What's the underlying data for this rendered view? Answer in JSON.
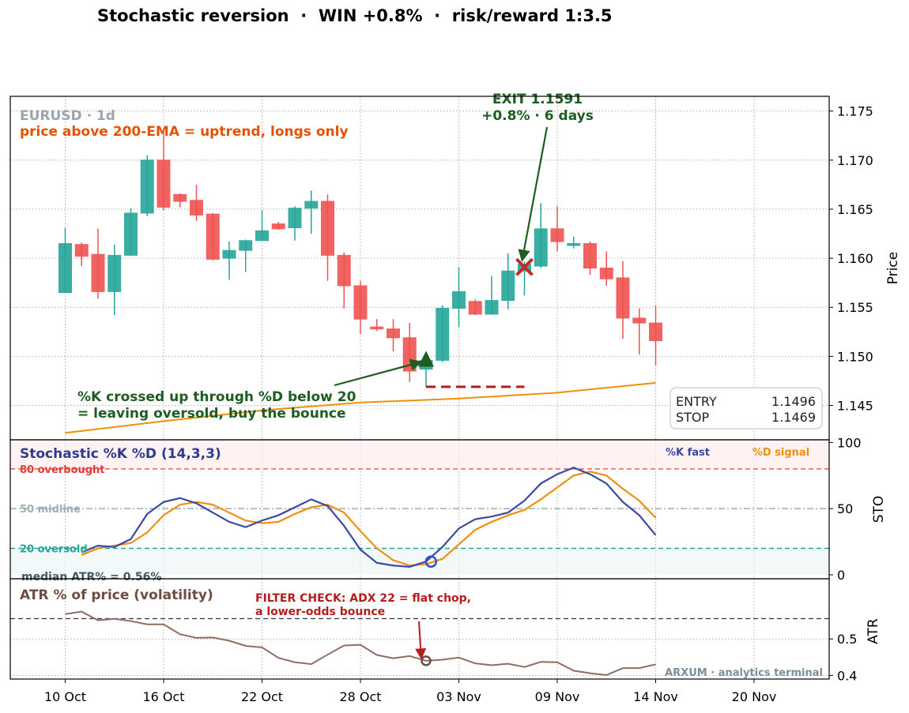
{
  "title": "Stochastic reversion  ·  WIN +0.8%  ·  risk/reward 1:3.5",
  "colors": {
    "bull": "#26a69a",
    "bear": "#ef5350",
    "ema": "#f0900a",
    "k": "#3a4aa0",
    "d": "#f0900a",
    "atr": "#8d6e63",
    "green": "#1b5e20",
    "red": "#b71c1c",
    "orange": "#e65100",
    "overbought": "#e53935",
    "oversold": "#26a69a",
    "midline": "#9eaeb5"
  },
  "chart_data": [
    {
      "type": "candlestick",
      "panel": "price",
      "ylabel": "Price",
      "ylim": [
        1.1415,
        1.1765
      ],
      "yticks": [
        "1.145",
        "1.150",
        "1.155",
        "1.160",
        "1.165",
        "1.170",
        "1.175"
      ],
      "xtick_labels": [
        "10 Oct",
        "16 Oct",
        "22 Oct",
        "28 Oct",
        "03 Nov",
        "09 Nov",
        "14 Nov",
        "20 Nov"
      ],
      "xtick_index": [
        0,
        6,
        12,
        18,
        24,
        30,
        36,
        42
      ],
      "grid": true,
      "label_symbol": "EURUSD · 1d",
      "label_trend": "price above 200-EMA = uptrend, longs only",
      "candles": [
        {
          "o": 1.1565,
          "h": 1.1631,
          "l": 1.1565,
          "c": 1.1615
        },
        {
          "o": 1.1614,
          "h": 1.1616,
          "l": 1.1592,
          "c": 1.1602
        },
        {
          "o": 1.1604,
          "h": 1.163,
          "l": 1.1559,
          "c": 1.1566
        },
        {
          "o": 1.1566,
          "h": 1.1614,
          "l": 1.1542,
          "c": 1.1603
        },
        {
          "o": 1.1603,
          "h": 1.1651,
          "l": 1.1603,
          "c": 1.1646
        },
        {
          "o": 1.1646,
          "h": 1.1705,
          "l": 1.1643,
          "c": 1.17
        },
        {
          "o": 1.17,
          "h": 1.1731,
          "l": 1.1649,
          "c": 1.1652
        },
        {
          "o": 1.1665,
          "h": 1.1666,
          "l": 1.1652,
          "c": 1.1658
        },
        {
          "o": 1.1659,
          "h": 1.1675,
          "l": 1.1638,
          "c": 1.1644
        },
        {
          "o": 1.1645,
          "h": 1.1646,
          "l": 1.1598,
          "c": 1.1599
        },
        {
          "o": 1.16,
          "h": 1.1617,
          "l": 1.1578,
          "c": 1.1608
        },
        {
          "o": 1.1608,
          "h": 1.1619,
          "l": 1.1586,
          "c": 1.1618
        },
        {
          "o": 1.1618,
          "h": 1.1649,
          "l": 1.1618,
          "c": 1.1628
        },
        {
          "o": 1.1635,
          "h": 1.1637,
          "l": 1.1629,
          "c": 1.163
        },
        {
          "o": 1.1631,
          "h": 1.1653,
          "l": 1.1618,
          "c": 1.1651
        },
        {
          "o": 1.1651,
          "h": 1.1669,
          "l": 1.1625,
          "c": 1.1658
        },
        {
          "o": 1.1658,
          "h": 1.1665,
          "l": 1.1577,
          "c": 1.1603
        },
        {
          "o": 1.1603,
          "h": 1.1606,
          "l": 1.1549,
          "c": 1.1572
        },
        {
          "o": 1.1572,
          "h": 1.1577,
          "l": 1.1523,
          "c": 1.1538
        },
        {
          "o": 1.153,
          "h": 1.1538,
          "l": 1.1526,
          "c": 1.1528
        },
        {
          "o": 1.1528,
          "h": 1.1538,
          "l": 1.1505,
          "c": 1.1519
        },
        {
          "o": 1.1519,
          "h": 1.1534,
          "l": 1.1474,
          "c": 1.1485
        },
        {
          "o": 1.1487,
          "h": 1.1503,
          "l": 1.1469,
          "c": 1.1496
        },
        {
          "o": 1.1496,
          "h": 1.1552,
          "l": 1.1494,
          "c": 1.1549
        },
        {
          "o": 1.1549,
          "h": 1.1591,
          "l": 1.153,
          "c": 1.1566
        },
        {
          "o": 1.1556,
          "h": 1.1558,
          "l": 1.1542,
          "c": 1.1543
        },
        {
          "o": 1.1543,
          "h": 1.1582,
          "l": 1.1543,
          "c": 1.1557
        },
        {
          "o": 1.1557,
          "h": 1.1605,
          "l": 1.1548,
          "c": 1.1587
        },
        {
          "o": 1.1587,
          "h": 1.1597,
          "l": 1.1562,
          "c": 1.1594
        },
        {
          "o": 1.1592,
          "h": 1.1656,
          "l": 1.159,
          "c": 1.163
        },
        {
          "o": 1.163,
          "h": 1.1653,
          "l": 1.1607,
          "c": 1.1617
        },
        {
          "o": 1.1613,
          "h": 1.1622,
          "l": 1.161,
          "c": 1.1615
        },
        {
          "o": 1.1615,
          "h": 1.1617,
          "l": 1.1583,
          "c": 1.159
        },
        {
          "o": 1.159,
          "h": 1.1607,
          "l": 1.1572,
          "c": 1.1579
        },
        {
          "o": 1.158,
          "h": 1.1597,
          "l": 1.1518,
          "c": 1.1539
        },
        {
          "o": 1.1539,
          "h": 1.1549,
          "l": 1.1502,
          "c": 1.1534
        },
        {
          "o": 1.1534,
          "h": 1.1552,
          "l": 1.1491,
          "c": 1.1516
        }
      ],
      "candle_days": [
        0,
        1,
        2,
        3,
        4,
        5,
        6,
        7,
        8,
        9,
        10,
        11,
        12,
        13,
        14,
        15,
        16,
        17,
        18,
        19,
        20,
        21,
        22,
        23,
        24,
        25,
        26,
        27,
        28,
        29,
        30,
        31,
        32,
        33,
        34,
        35,
        36
      ],
      "ema200": {
        "name": "200-EMA",
        "x": [
          0,
          6,
          12,
          18,
          24,
          30,
          36
        ],
        "y": [
          1.1422,
          1.1434,
          1.1445,
          1.1453,
          1.1457,
          1.1463,
          1.1473
        ]
      },
      "entry": {
        "index": 22,
        "price": 1.1496
      },
      "exit": {
        "index": 28,
        "price": 1.1591
      },
      "stop": {
        "price": 1.1469,
        "from_index": 22,
        "to_index": 28
      },
      "annotations": {
        "exit_line1": "EXIT 1.1591",
        "exit_line2": "+0.8%  ·  6 days",
        "entry_line1": "%K crossed up through %D below 20",
        "entry_line2": "= leaving oversold, buy the bounce"
      },
      "trade_box": {
        "entry_label": "ENTRY",
        "entry_value": "1.1496",
        "stop_label": "STOP",
        "stop_value": "1.1469"
      }
    },
    {
      "type": "line",
      "panel": "stochastic",
      "title": "Stochastic %K %D (14,3,3)",
      "ylabel": "STO",
      "ylim": [
        -3,
        102
      ],
      "yticks": [
        "0",
        "50",
        "100"
      ],
      "levels": {
        "overbought": {
          "value": 80,
          "label": "80  overbought"
        },
        "midline": {
          "value": 50,
          "label": "50  midline"
        },
        "oversold": {
          "value": 20,
          "label": "20  oversold"
        }
      },
      "legend": {
        "k_label": "%K fast",
        "d_label": "%D signal",
        "placement": "top-right"
      },
      "series": [
        {
          "name": "%K fast",
          "values": [
            17,
            22,
            21,
            27,
            46,
            55,
            58,
            54,
            47,
            40,
            36,
            41,
            45,
            51,
            57,
            52,
            37,
            19,
            9,
            7,
            6,
            10,
            21,
            35,
            42,
            44,
            47,
            56,
            69,
            76,
            81,
            76,
            69,
            55,
            45,
            30
          ]
        },
        {
          "name": "%D signal",
          "values": [
            15,
            20,
            22,
            24,
            32,
            45,
            53,
            55,
            53,
            47,
            41,
            39,
            40,
            46,
            51,
            53,
            47,
            33,
            20,
            11,
            7,
            8,
            12,
            23,
            34,
            40,
            45,
            49,
            57,
            66,
            75,
            78,
            75,
            65,
            56,
            43
          ]
        }
      ],
      "x_index": [
        0,
        1,
        2,
        3,
        4,
        5,
        6,
        7,
        8,
        9,
        10,
        11,
        12,
        13,
        14,
        15,
        16,
        17,
        18,
        19,
        20,
        21,
        22,
        23,
        24,
        25,
        26,
        27,
        28,
        29,
        30,
        31,
        32,
        33,
        34,
        35
      ],
      "signal_index": 21
    },
    {
      "type": "line",
      "panel": "atr",
      "title": "ATR % of price (volatility)",
      "ylabel": "ATR",
      "ylim": [
        0.39,
        0.665
      ],
      "yticks": [
        "0.4",
        "0.5"
      ],
      "median": {
        "value": 0.56,
        "label": "median ATR% = 0.56%"
      },
      "series": [
        {
          "name": "ATR % of price (volatility)",
          "values": [
            0.568,
            0.575,
            0.551,
            0.555,
            0.549,
            0.54,
            0.54,
            0.513,
            0.503,
            0.504,
            0.495,
            0.481,
            0.477,
            0.448,
            0.436,
            0.431,
            0.457,
            0.482,
            0.484,
            0.456,
            0.447,
            0.453,
            0.44,
            0.443,
            0.449,
            0.433,
            0.428,
            0.432,
            0.423,
            0.437,
            0.436,
            0.413,
            0.406,
            0.401,
            0.42,
            0.42,
            0.43
          ]
        },
        {
          "name": "filter_point",
          "values": [
            0.44
          ]
        }
      ],
      "x_index": [
        0,
        1,
        2,
        3,
        4,
        5,
        6,
        7,
        8,
        9,
        10,
        11,
        12,
        13,
        14,
        15,
        16,
        17,
        18,
        19,
        20,
        21,
        22,
        23,
        24,
        25,
        26,
        27,
        28,
        29,
        30,
        31,
        32,
        33,
        34,
        35,
        36
      ],
      "filter_index": 22,
      "filter_text_line1": "FILTER CHECK: ADX 22 = flat chop,",
      "filter_text_line2": "a lower-odds bounce",
      "watermark": "ARXUM · analytics terminal"
    }
  ]
}
